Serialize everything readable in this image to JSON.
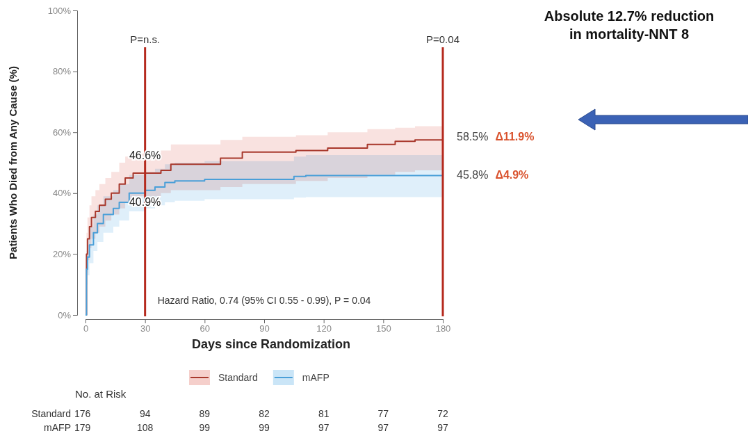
{
  "chart_data": {
    "type": "step",
    "title": "Absolute 12.7% reduction in mortality-NNT 8",
    "xlabel": "Days since Randomization",
    "ylabel": "Patients Who Died from Any Cause (%)",
    "xlim": [
      0,
      180
    ],
    "xticks": [
      0,
      30,
      60,
      90,
      120,
      150,
      180
    ],
    "ylim": [
      0,
      100
    ],
    "yticks": [
      {
        "value": 0,
        "label": "0%"
      },
      {
        "value": 20,
        "label": "20%"
      },
      {
        "value": 40,
        "label": "40%"
      },
      {
        "value": 60,
        "label": "60%"
      },
      {
        "value": 80,
        "label": "80%"
      },
      {
        "value": 100,
        "label": "100%"
      }
    ],
    "grid": false,
    "legend": "bottom",
    "marker": "none",
    "line_style": "solid",
    "series": [
      {
        "name": "Standard",
        "color": "#a8382c",
        "x": [
          0,
          0.5,
          1,
          2,
          3,
          5,
          7,
          10,
          13,
          17,
          20,
          24,
          38,
          43,
          68,
          79,
          106,
          122,
          142,
          156,
          166,
          180
        ],
        "values": [
          0,
          20,
          25,
          29,
          32,
          34,
          36,
          38,
          40,
          43,
          45,
          46.6,
          47.5,
          49.5,
          51.5,
          53.5,
          54,
          54.8,
          56,
          57,
          57.5,
          58.5
        ],
        "upper": [
          0,
          27,
          32,
          36,
          39,
          41,
          43,
          45,
          47,
          50,
          52,
          53,
          54,
          56,
          57.5,
          58.5,
          59,
          60,
          61,
          61.5,
          62,
          62
        ],
        "lower": [
          0,
          14,
          18,
          22,
          25,
          27,
          29,
          31,
          33,
          35,
          37,
          39,
          40,
          41,
          42,
          43,
          44,
          45,
          46,
          47,
          47.5,
          48
        ]
      },
      {
        "name": "mAFP",
        "color": "#4a9fd8",
        "x": [
          0,
          0.5,
          1,
          2,
          4,
          6,
          9,
          14,
          17,
          22,
          30,
          35,
          40,
          45,
          60,
          105,
          111,
          180
        ],
        "values": [
          0,
          15,
          19,
          23,
          27,
          30,
          33,
          35,
          37,
          40,
          40.9,
          42,
          43.5,
          44,
          44.5,
          45.5,
          45.8,
          45.8
        ],
        "upper": [
          0,
          21,
          25,
          29,
          33,
          36,
          39,
          41,
          43,
          46,
          47,
          48,
          49.5,
          50,
          50.5,
          52,
          52.5,
          53
        ],
        "lower": [
          0,
          10,
          13,
          17,
          21,
          24,
          27,
          29,
          31,
          34,
          35,
          36,
          37,
          37.5,
          38,
          38.5,
          38.7,
          38.7
        ]
      }
    ],
    "ref_lines": [
      {
        "axis": "x",
        "value": 30,
        "color": "#b52a1e"
      },
      {
        "axis": "x",
        "value": 180,
        "color": "#b52a1e"
      }
    ],
    "annotations": [
      "Hazard Ratio, 0.74 (95% CI 0.55 - 0.99), P = 0.04",
      "46.6%",
      "40.9%",
      "58.5%",
      "45.8%",
      "P=n.s.",
      "P=0.04",
      "Δ11.9%",
      "Δ4.9%",
      "No. at Risk",
      "Standard 176 94 89 82 81 77 72",
      "mAFP 179 108 99 99 97 97 97"
    ]
  }
}
